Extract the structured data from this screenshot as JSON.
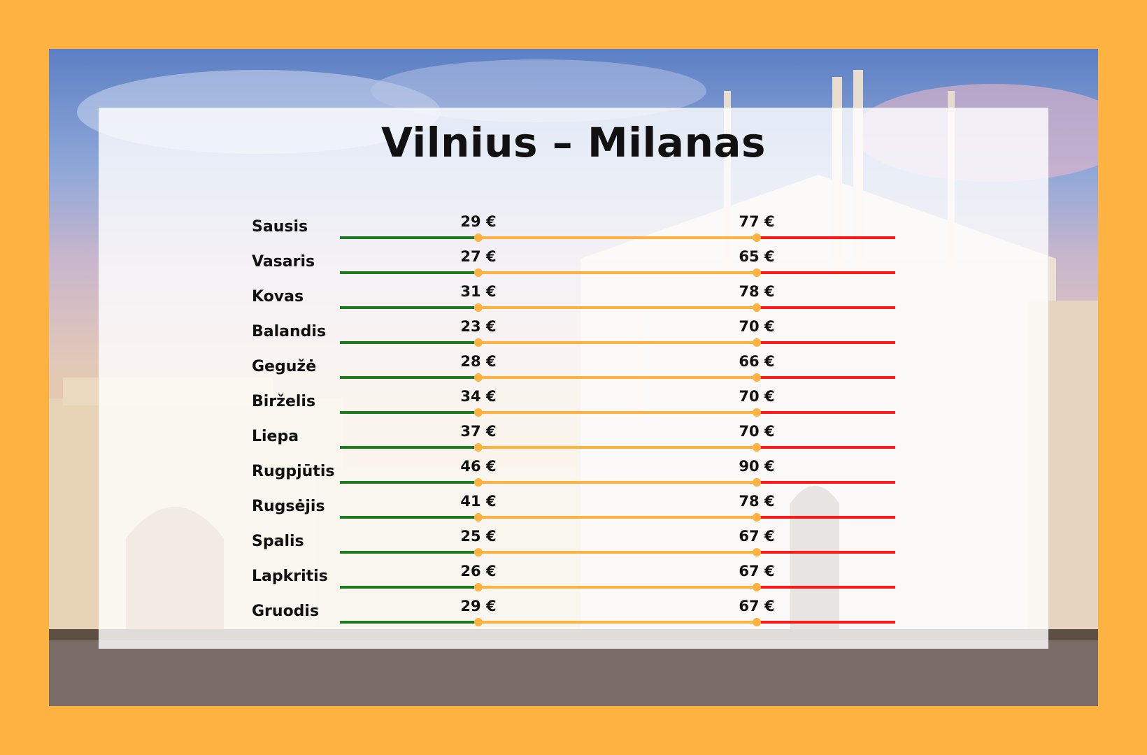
{
  "title": "Vilnius – Milanas",
  "colors": {
    "frame": "#FDB242",
    "low": "#1E7A1E",
    "mid": "#FDB242",
    "high": "#FF1A1A"
  },
  "chart_data": {
    "type": "range",
    "currency": "€",
    "categories": [
      "Sausis",
      "Vasaris",
      "Kovas",
      "Balandis",
      "Gegužė",
      "Birželis",
      "Liepa",
      "Rugpjūtis",
      "Rugsėjis",
      "Spalis",
      "Lapkritis",
      "Gruodis"
    ],
    "series": [
      {
        "values": [
          29,
          27,
          31,
          23,
          28,
          34,
          37,
          46,
          41,
          25,
          26,
          29
        ]
      },
      {
        "values": [
          77,
          65,
          78,
          70,
          66,
          70,
          70,
          90,
          78,
          67,
          67,
          67
        ]
      }
    ]
  }
}
